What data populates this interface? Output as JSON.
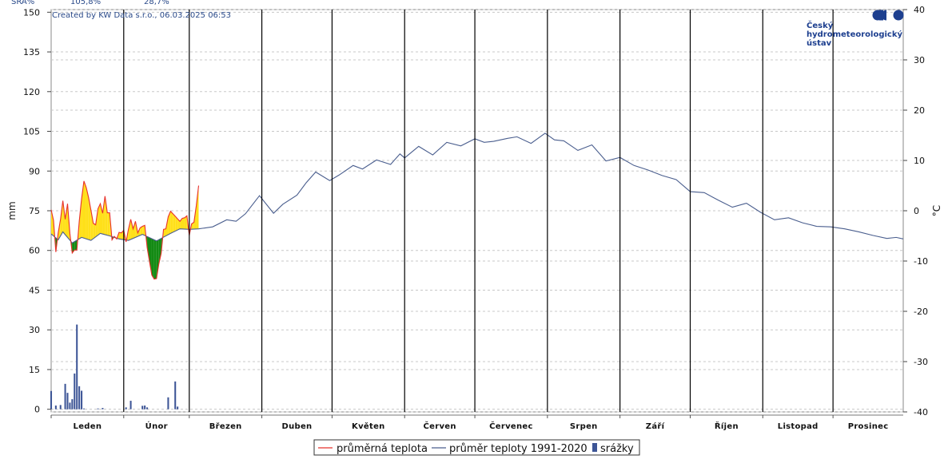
{
  "header": {
    "label": "SRA%",
    "values": [
      "105,8%",
      "28,7%"
    ]
  },
  "credit": "Created by KW Data s.r.o., 06.03.2025 06:53",
  "logo": {
    "icon": "chmi-logo-icon",
    "lines": [
      "Český",
      "hydrometeorologický",
      "ústav"
    ],
    "color": "#1d3f8f"
  },
  "chart_data": {
    "type": "line",
    "x_unit": "day-of-year",
    "months": [
      "Leden",
      "Únor",
      "Březen",
      "Duben",
      "Květen",
      "Červen",
      "Červenec",
      "Srpen",
      "Září",
      "Říjen",
      "Listopad",
      "Prosinec"
    ],
    "month_days": [
      31,
      28,
      31,
      30,
      31,
      30,
      31,
      31,
      30,
      31,
      30,
      31
    ],
    "left_axis": {
      "label": "mm",
      "min": -1,
      "max": 151,
      "ticks": [
        0,
        15,
        30,
        45,
        60,
        75,
        90,
        105,
        120,
        135,
        150
      ]
    },
    "right_axis": {
      "label": "°C",
      "min": -40,
      "max": 40,
      "ticks": [
        -40,
        -30,
        -20,
        -10,
        0,
        10,
        20,
        30,
        40
      ]
    },
    "grid": true,
    "colors": {
      "avg_temp": "#e8312b",
      "normal_temp": "#4a5e8e",
      "precip": "#3d5596",
      "warmer_fill": "#ffe01a",
      "colder_fill": "#138a13"
    },
    "legend": {
      "placement": "bottom-center",
      "entries": [
        "průměrná teplota",
        "průměr teploty 1991-2020",
        "srážky"
      ]
    },
    "series": [
      {
        "name": "průměrná teplota",
        "axis": "right",
        "kind": "line",
        "x": [
          1,
          2,
          3,
          4,
          5,
          6,
          7,
          8,
          9,
          10,
          11,
          12,
          13,
          14,
          15,
          16,
          17,
          18,
          19,
          20,
          21,
          22,
          23,
          24,
          25,
          26,
          27,
          28,
          29,
          30,
          31,
          32,
          33,
          34,
          35,
          36,
          37,
          38,
          39,
          40,
          41,
          42,
          43,
          44,
          45,
          46,
          47,
          48,
          49,
          50,
          51,
          52,
          53,
          54,
          55,
          56,
          57,
          58,
          59,
          60,
          61,
          62,
          63,
          64
        ],
        "values": [
          0.2,
          -1.9,
          -8.2,
          -4.4,
          -1.7,
          2.0,
          -1.7,
          1.4,
          -4.5,
          -8.4,
          -7.8,
          -7.8,
          -2.1,
          2.4,
          5.9,
          4.6,
          2.6,
          0.1,
          -2.5,
          -2.8,
          0.4,
          1.4,
          -0.5,
          2.9,
          -0.4,
          -0.4,
          -5.8,
          -5.1,
          -5.6,
          -4.3,
          -4.4,
          -3.9,
          -6.2,
          -3.7,
          -1.7,
          -3.6,
          -2.1,
          -4.4,
          -3.4,
          -3.1,
          -2.9,
          -7.3,
          -10.1,
          -12.8,
          -13.6,
          -13.5,
          -10.6,
          -8.5,
          -3.7,
          -3.6,
          -1.2,
          -0.1,
          -0.6,
          -1.1,
          -1.6,
          -2.1,
          -1.5,
          -1.4,
          -1.0,
          -4.9,
          -2.6,
          -2.3,
          1.0,
          5.0
        ]
      },
      {
        "name": "průměr teploty 1991-2020",
        "axis": "right",
        "kind": "line",
        "x": [
          1,
          4,
          6,
          10,
          14,
          18,
          22,
          26,
          30,
          34,
          40,
          46,
          52,
          56,
          60,
          64,
          70,
          76,
          80,
          84,
          90,
          96,
          100,
          106,
          110,
          114,
          120,
          124,
          130,
          134,
          140,
          146,
          150,
          152,
          158,
          164,
          170,
          176,
          182,
          186,
          190,
          196,
          200,
          206,
          212,
          216,
          220,
          226,
          232,
          238,
          244,
          250,
          256,
          262,
          268,
          274,
          280,
          286,
          292,
          298,
          304,
          310,
          316,
          322,
          328,
          334,
          340,
          346,
          352,
          358,
          362,
          365
        ],
        "values": [
          -4.6,
          -5.8,
          -4.2,
          -6.4,
          -5.3,
          -5.9,
          -4.5,
          -5.0,
          -5.6,
          -5.9,
          -4.7,
          -6.0,
          -4.5,
          -3.6,
          -3.7,
          -3.6,
          -3.2,
          -1.8,
          -2.1,
          -0.6,
          3.0,
          -0.5,
          1.3,
          3.1,
          5.6,
          7.7,
          6.0,
          7.1,
          9.0,
          8.3,
          10.1,
          9.2,
          11.3,
          10.5,
          12.8,
          11.1,
          13.6,
          12.9,
          14.3,
          13.6,
          13.8,
          14.4,
          14.7,
          13.4,
          15.4,
          14.1,
          13.9,
          12.0,
          13.1,
          9.9,
          10.6,
          9.0,
          8.1,
          7.0,
          6.2,
          3.8,
          3.6,
          2.1,
          0.7,
          1.5,
          -0.3,
          -1.8,
          -1.4,
          -2.4,
          -3.1,
          -3.2,
          -3.6,
          -4.2,
          -4.9,
          -5.5,
          -5.3,
          -5.6
        ]
      },
      {
        "name": "srážky",
        "axis": "left",
        "kind": "bar",
        "x": [
          1,
          3,
          5,
          7,
          8,
          9,
          10,
          11,
          12,
          13,
          14,
          15,
          21,
          23,
          33,
          35,
          40,
          41,
          42,
          51,
          54,
          55
        ],
        "values": [
          6.9,
          1.4,
          1.6,
          9.6,
          6.2,
          2.5,
          3.8,
          13.5,
          32.0,
          8.7,
          7.0,
          0.3,
          0.3,
          0.5,
          0.7,
          3.2,
          1.3,
          1.4,
          0.7,
          4.5,
          10.5,
          1.0
        ]
      }
    ]
  }
}
